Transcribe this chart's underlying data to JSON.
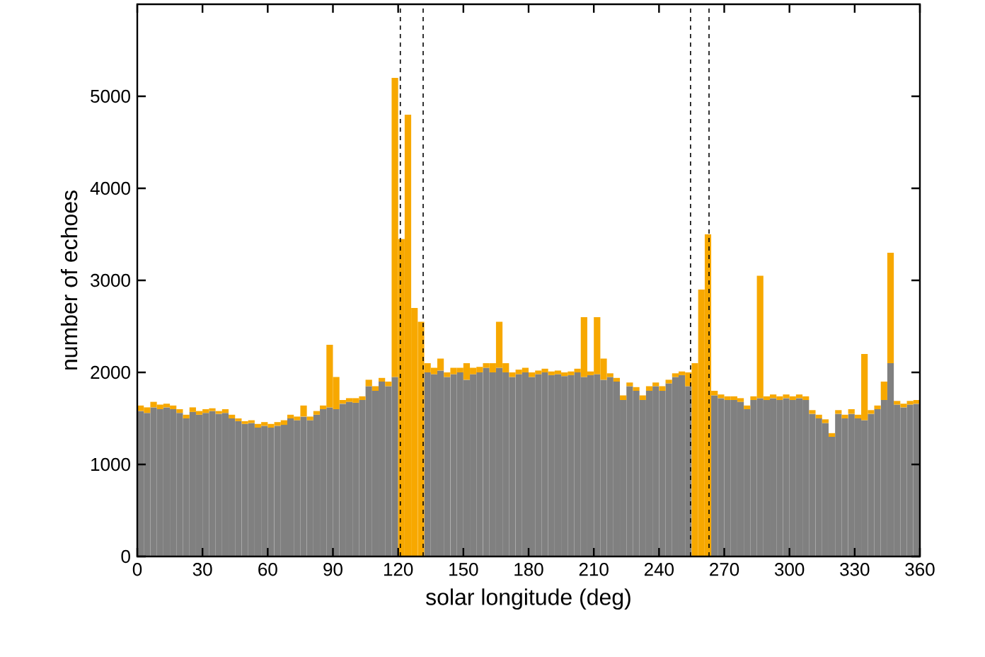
{
  "chart_data": {
    "type": "bar",
    "xlabel": "solar longitude (deg)",
    "ylabel": "number of echoes",
    "x": [
      1.5,
      4.5,
      7.5,
      10.5,
      13.5,
      16.5,
      19.5,
      22.5,
      25.5,
      28.5,
      31.5,
      34.5,
      37.5,
      40.5,
      43.5,
      46.5,
      49.5,
      52.5,
      55.5,
      58.5,
      61.5,
      64.5,
      67.5,
      70.5,
      73.5,
      76.5,
      79.5,
      82.5,
      85.5,
      88.5,
      91.5,
      94.5,
      97.5,
      100.5,
      103.5,
      106.5,
      109.5,
      112.5,
      115.5,
      118.5,
      121.5,
      124.5,
      127.5,
      130.5,
      133.5,
      136.5,
      139.5,
      142.5,
      145.5,
      148.5,
      151.5,
      154.5,
      157.5,
      160.5,
      163.5,
      166.5,
      169.5,
      172.5,
      175.5,
      178.5,
      181.5,
      184.5,
      187.5,
      190.5,
      193.5,
      196.5,
      199.5,
      202.5,
      205.5,
      208.5,
      211.5,
      214.5,
      217.5,
      220.5,
      223.5,
      226.5,
      229.5,
      232.5,
      235.5,
      238.5,
      241.5,
      244.5,
      247.5,
      250.5,
      253.5,
      256.5,
      259.5,
      262.5,
      265.5,
      268.5,
      271.5,
      274.5,
      277.5,
      280.5,
      283.5,
      286.5,
      289.5,
      292.5,
      295.5,
      298.5,
      301.5,
      304.5,
      307.5,
      310.5,
      313.5,
      316.5,
      319.5,
      322.5,
      325.5,
      328.5,
      331.5,
      334.5,
      337.5,
      340.5,
      343.5,
      346.5,
      349.5,
      352.5,
      355.5,
      358.5
    ],
    "stacked": true,
    "series": [
      {
        "color": "#808080",
        "values": [
          1580,
          1560,
          1620,
          1600,
          1620,
          1600,
          1560,
          1500,
          1570,
          1540,
          1560,
          1580,
          1550,
          1560,
          1500,
          1470,
          1440,
          1450,
          1400,
          1420,
          1400,
          1420,
          1430,
          1500,
          1480,
          1520,
          1480,
          1540,
          1600,
          1620,
          1600,
          1660,
          1680,
          1670,
          1700,
          1850,
          1800,
          1900,
          1850,
          1950,
          null,
          null,
          null,
          null,
          2000,
          1980,
          2020,
          1950,
          1980,
          2000,
          1920,
          1980,
          2000,
          2050,
          2000,
          2050,
          2000,
          1950,
          1980,
          2000,
          1950,
          1980,
          2000,
          1970,
          1980,
          1960,
          1970,
          2000,
          1950,
          1970,
          1980,
          1920,
          1950,
          1900,
          1700,
          1850,
          1800,
          1700,
          1800,
          1850,
          1800,
          1880,
          1950,
          1970,
          1850,
          null,
          null,
          null,
          1750,
          1720,
          1700,
          1700,
          1680,
          1600,
          1700,
          1720,
          1700,
          1720,
          1700,
          1720,
          1700,
          1720,
          1700,
          1550,
          1500,
          1450,
          1300,
          1550,
          1500,
          1550,
          1500,
          1480,
          1550,
          1600,
          1700,
          2100,
          1650,
          1620,
          1650,
          1660
        ]
      },
      {
        "color": "#f7a800",
        "values": [
          60,
          60,
          60,
          50,
          40,
          40,
          40,
          40,
          50,
          40,
          40,
          30,
          30,
          40,
          40,
          30,
          30,
          30,
          40,
          40,
          40,
          40,
          50,
          40,
          40,
          120,
          40,
          40,
          40,
          680,
          350,
          40,
          40,
          50,
          40,
          70,
          50,
          40,
          50,
          3250,
          3450,
          4800,
          2700,
          2550,
          100,
          70,
          130,
          50,
          70,
          50,
          180,
          70,
          60,
          50,
          100,
          500,
          100,
          50,
          50,
          50,
          50,
          40,
          40,
          40,
          40,
          40,
          40,
          40,
          650,
          40,
          620,
          230,
          40,
          40,
          50,
          40,
          40,
          50,
          50,
          40,
          50,
          40,
          40,
          40,
          150,
          2100,
          2900,
          3500,
          50,
          40,
          40,
          40,
          40,
          40,
          40,
          1330,
          40,
          40,
          40,
          40,
          40,
          40,
          40,
          40,
          40,
          40,
          40,
          40,
          40,
          50,
          40,
          720,
          40,
          40,
          200,
          1200,
          40,
          40,
          40,
          40
        ]
      }
    ],
    "xlim": [
      0,
      360
    ],
    "ylim": [
      0,
      6000
    ],
    "xticks": [
      0,
      30,
      60,
      90,
      120,
      150,
      180,
      210,
      240,
      270,
      300,
      330,
      360
    ],
    "yticks": [
      0,
      1000,
      2000,
      3000,
      4000,
      5000
    ],
    "ref_lines": [
      {
        "axis": "x",
        "value": 121,
        "color": "#000000",
        "line_style": "dashed"
      },
      {
        "axis": "x",
        "value": 131.5,
        "color": "#000000",
        "line_style": "dashed"
      },
      {
        "axis": "x",
        "value": 254.5,
        "color": "#000000",
        "line_style": "dashed"
      },
      {
        "axis": "x",
        "value": 263,
        "color": "#000000",
        "line_style": "dashed"
      }
    ]
  }
}
